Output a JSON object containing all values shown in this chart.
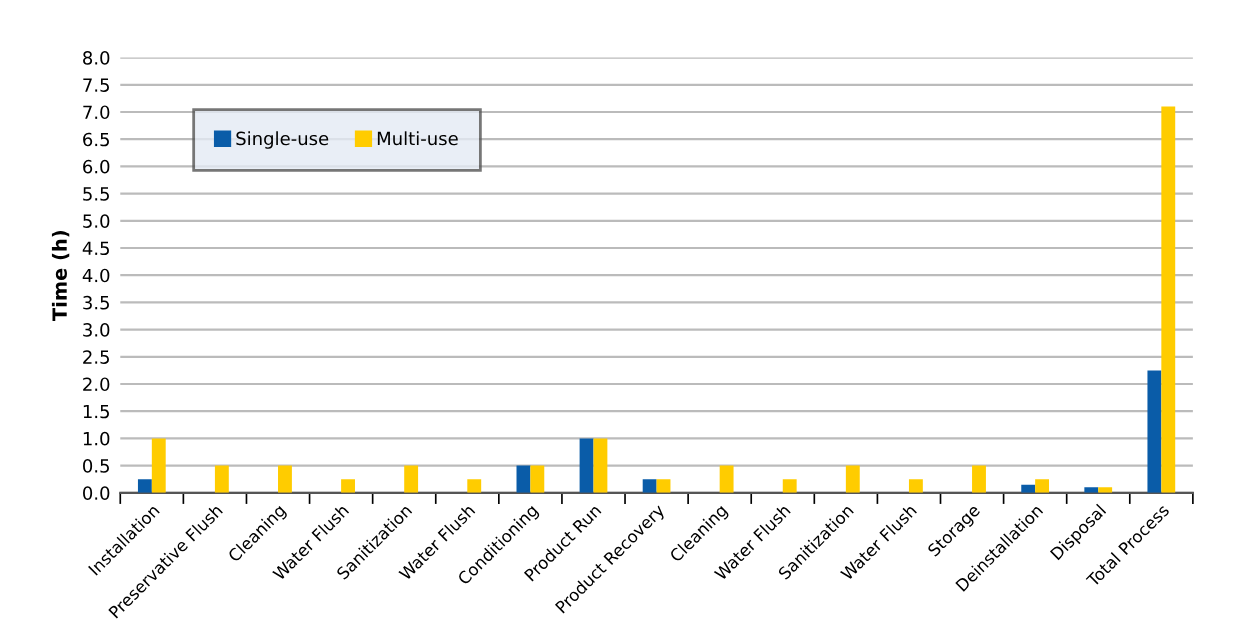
{
  "chart_data": {
    "type": "bar",
    "ylabel": "Time (h)",
    "categories": [
      "Installation",
      "Preservative Flush",
      "Cleaning",
      "Water Flush",
      "Sanitization",
      "Water Flush",
      "Conditioning",
      "Product Run",
      "Product Recovery",
      "Cleaning",
      "Water Flush",
      "Sanitization",
      "Water Flush",
      "Storage",
      "Deinstallation",
      "Disposal",
      "Total Process"
    ],
    "series": [
      {
        "name": "Single-use",
        "color": "#0a5ca8",
        "values": [
          0.25,
          null,
          null,
          null,
          null,
          null,
          0.5,
          1.0,
          0.25,
          null,
          null,
          null,
          null,
          null,
          0.15,
          0.1,
          2.25
        ]
      },
      {
        "name": "Multi-use",
        "color": "#ffcc00",
        "values": [
          1.0,
          0.5,
          0.5,
          0.25,
          0.5,
          0.25,
          0.5,
          1.0,
          0.25,
          0.5,
          0.25,
          0.5,
          0.25,
          0.5,
          0.25,
          0.1,
          7.1
        ]
      }
    ],
    "ylim": [
      0,
      8
    ],
    "yticks": [
      {
        "value": 0,
        "label": "0.0"
      },
      {
        "value": 0.5,
        "label": "0.5"
      },
      {
        "value": 1,
        "label": "1.0"
      },
      {
        "value": 1.5,
        "label": "1.5"
      },
      {
        "value": 2,
        "label": "2.0"
      },
      {
        "value": 2.5,
        "label": "2.5"
      },
      {
        "value": 3,
        "label": "3.0"
      },
      {
        "value": 3.5,
        "label": "3.5"
      },
      {
        "value": 4,
        "label": "4.0"
      },
      {
        "value": 4.5,
        "label": "4.5"
      },
      {
        "value": 5,
        "label": "5.0"
      },
      {
        "value": 5.5,
        "label": "5.5"
      },
      {
        "value": 6,
        "label": "6.0"
      },
      {
        "value": 6.5,
        "label": "6.5"
      },
      {
        "value": 7,
        "label": "7.0"
      },
      {
        "value": 7.5,
        "label": "7.5"
      },
      {
        "value": 8,
        "label": "8.0"
      }
    ],
    "grid": "y",
    "legend": "top left"
  }
}
